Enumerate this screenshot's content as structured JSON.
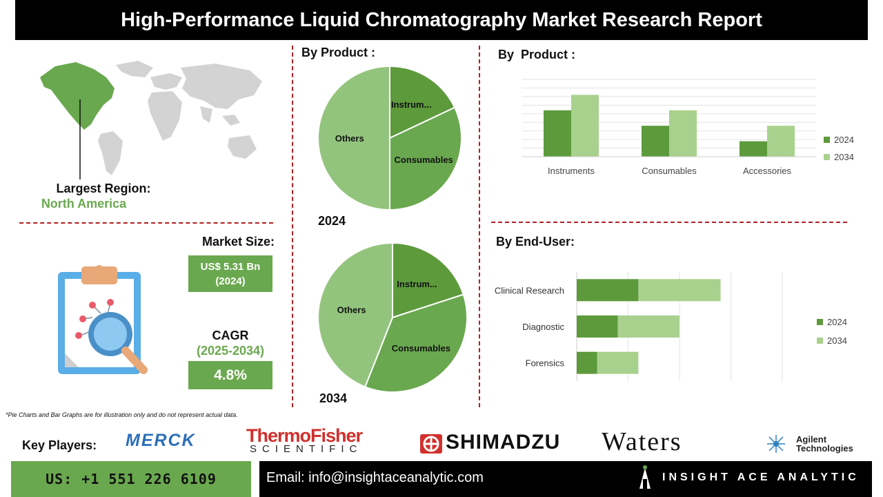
{
  "title": "High-Performance Liquid Chromatography Market Research Report",
  "region": {
    "label": "Largest Region:",
    "value": "North America"
  },
  "market_size": {
    "label": "Market Size:",
    "value_line1": "US$ 5.31 Bn",
    "value_line2": "(2024)"
  },
  "cagr": {
    "label": "CAGR",
    "period": "(2025-2034)",
    "value": "4.8%"
  },
  "pie_section": {
    "heading": "By Product :",
    "year1": "2024",
    "year2": "2034"
  },
  "bar_section": {
    "heading": "By  Product :"
  },
  "enduser_section": {
    "heading": "By End-User:"
  },
  "note": "*Pie Charts and Bar Graphs are for illustration only and do not represent actual data.",
  "key_players": {
    "label": "Key Players:",
    "merck": "MERCK",
    "thermo_line1": "ThermoFisher",
    "thermo_line2": "SCIENTIFIC",
    "shimadzu": "SHIMADZU",
    "waters": "Waters",
    "agilent_line1": "Agilent",
    "agilent_line2": "Technologies"
  },
  "footer": {
    "phone": "US: +1 551 226 6109",
    "email": "Email: info@insightaceanalytic.com",
    "brand": "INSIGHT ACE ANALYTIC"
  },
  "colors": {
    "dark_green": "#5d9a3c",
    "mid_green": "#6aa84f",
    "light_green": "#9bc987",
    "lighter_green": "#a9d18e",
    "accent_red": "#b11e22"
  },
  "chart_data": [
    {
      "type": "pie",
      "year": "2024",
      "labels": [
        "Instrum...",
        "Consumables",
        "Others"
      ],
      "values": [
        18,
        32,
        50
      ]
    },
    {
      "type": "pie",
      "year": "2034",
      "labels": [
        "Instrum...",
        "Consumables",
        "Others"
      ],
      "values": [
        20,
        36,
        44
      ]
    },
    {
      "type": "bar",
      "categories": [
        "Instruments",
        "Consumables",
        "Accessories"
      ],
      "series": [
        {
          "name": "2024",
          "values": [
            3,
            2,
            1
          ]
        },
        {
          "name": "2034",
          "values": [
            4,
            3,
            2
          ]
        }
      ],
      "ylim": [
        0,
        5
      ]
    },
    {
      "type": "bar",
      "orientation": "horizontal",
      "stacked": true,
      "categories": [
        "Clinical Research",
        "Diagnostic",
        "Forensics"
      ],
      "series": [
        {
          "name": "2024",
          "values": [
            3,
            2,
            1
          ]
        },
        {
          "name": "2034",
          "values": [
            4,
            3,
            2
          ]
        }
      ],
      "xlim": [
        0,
        10
      ]
    }
  ]
}
